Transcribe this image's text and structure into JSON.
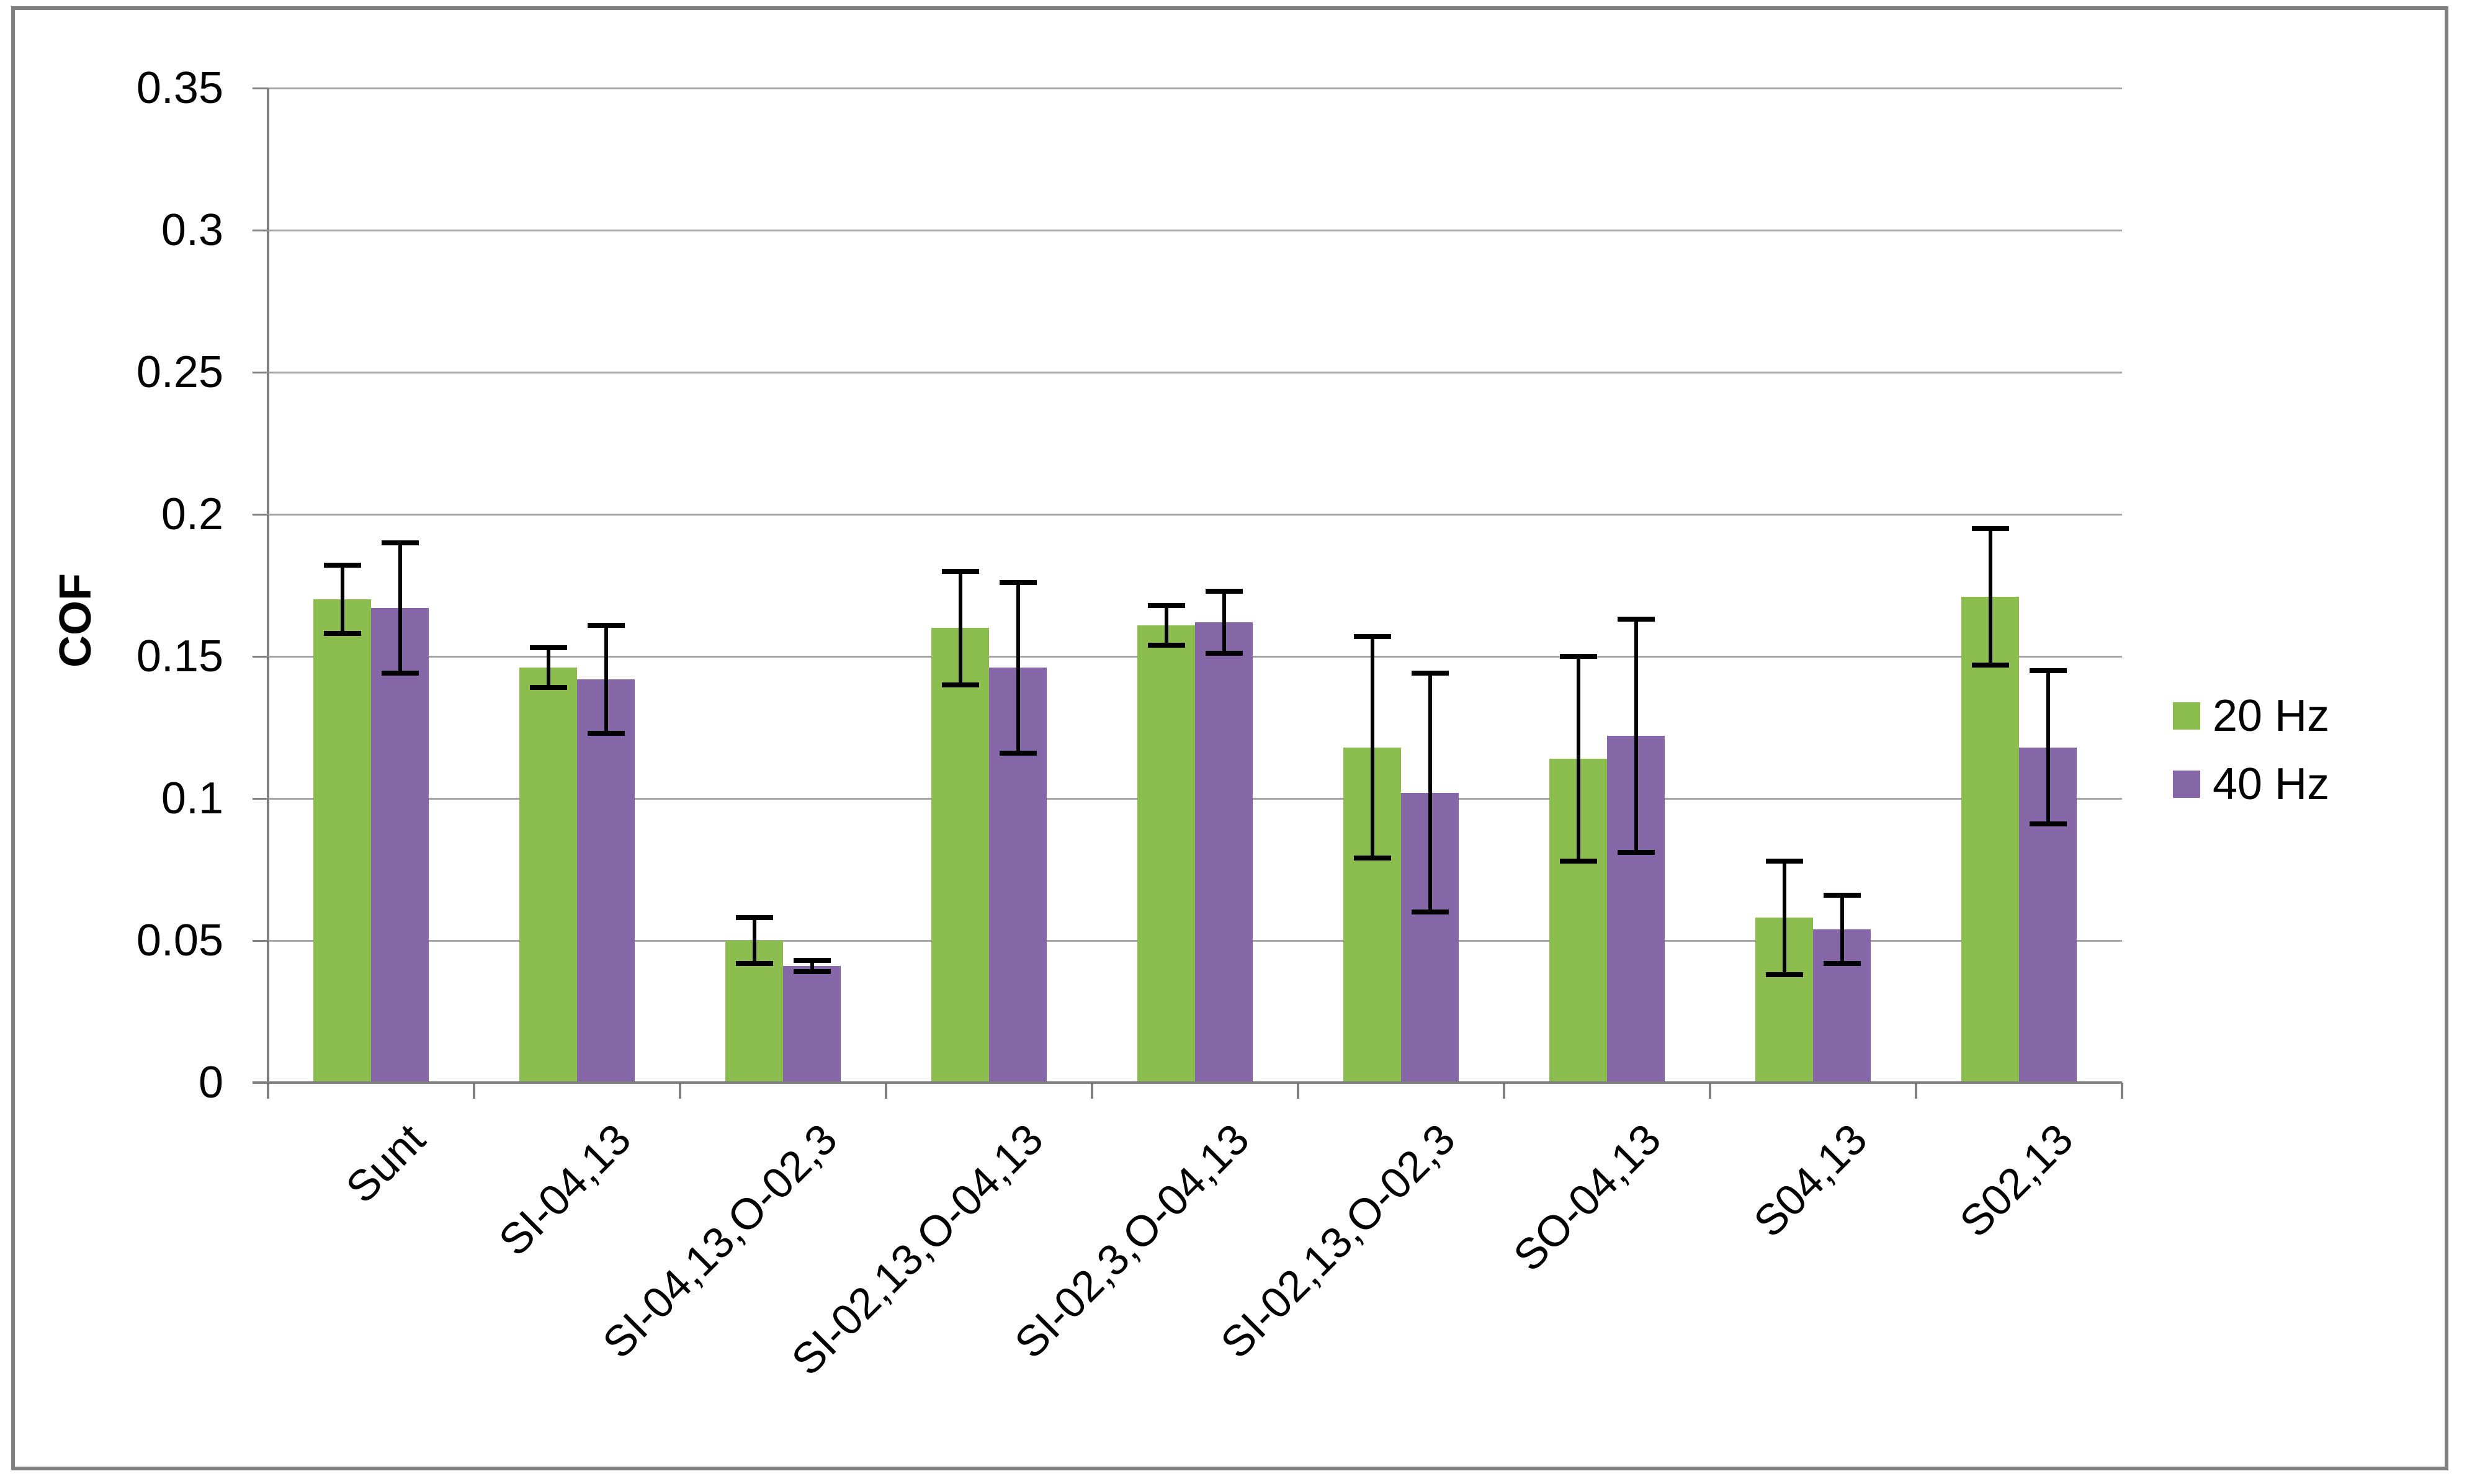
{
  "figure": {
    "background": "#FFFFFF",
    "border_color": "#808080"
  },
  "colors": {
    "gridline": "#A6A6A6",
    "axis": "#808080",
    "error_bar": "#000000",
    "text": "#000000",
    "series_20hz": "#8CBD4F",
    "series_40hz": "#8668A8"
  },
  "chart_data": {
    "type": "bar",
    "title": "",
    "xlabel": "",
    "ylabel": "COF",
    "ylim": [
      0,
      0.35
    ],
    "ytick_values": [
      0,
      0.05,
      0.1,
      0.15,
      0.2,
      0.25,
      0.3,
      0.35
    ],
    "ytick_labels": [
      "0",
      "0.05",
      "0.1",
      "0.15",
      "0.2",
      "0.25",
      "0.3",
      "0.35"
    ],
    "grid": "horizontal",
    "legend_position": "right",
    "error_bars": true,
    "categories": [
      "Sunt",
      "SI-04,13",
      "SI-04,13,O-02,3",
      "SI-02,13,O-04,13",
      "SI-02,3,O-04,13",
      "SI-02,13,O-02,3",
      "SO-04,13",
      "S04,13",
      "S02,13"
    ],
    "series": [
      {
        "name": "20 Hz",
        "color": "#8CBD4F",
        "values": [
          0.17,
          0.146,
          0.05,
          0.16,
          0.161,
          0.118,
          0.114,
          0.058,
          0.171
        ],
        "errors": [
          0.012,
          0.007,
          0.008,
          0.02,
          0.007,
          0.039,
          0.036,
          0.02,
          0.024
        ]
      },
      {
        "name": "40 Hz",
        "color": "#8668A8",
        "values": [
          0.167,
          0.142,
          0.041,
          0.146,
          0.162,
          0.102,
          0.122,
          0.054,
          0.118
        ],
        "errors": [
          0.023,
          0.019,
          0.002,
          0.03,
          0.011,
          0.042,
          0.041,
          0.012,
          0.027
        ]
      }
    ]
  }
}
